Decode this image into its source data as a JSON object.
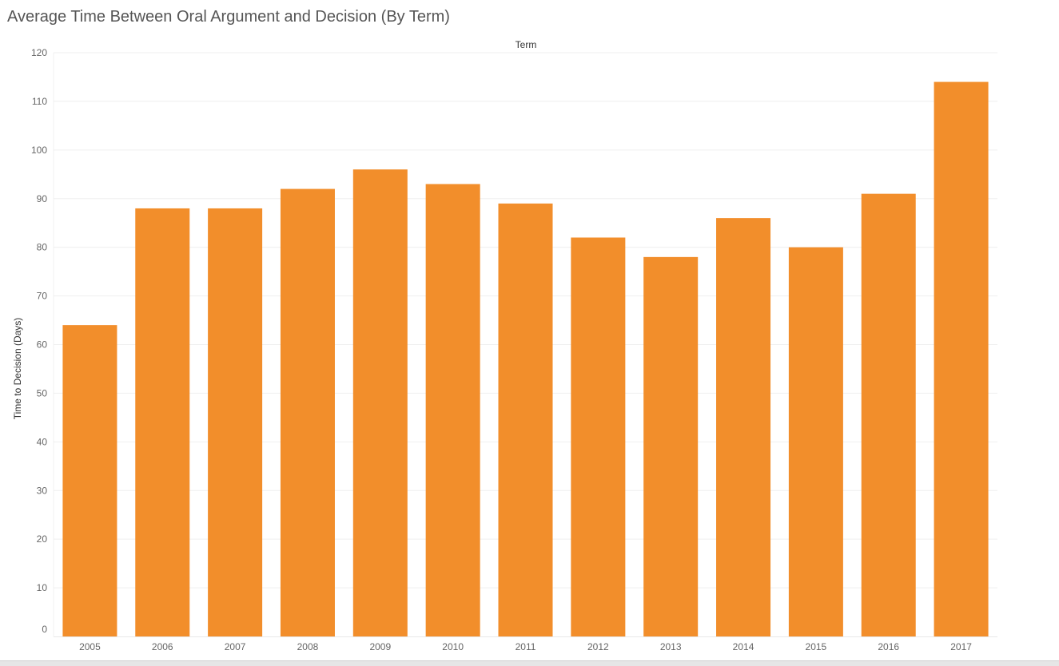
{
  "chart_data": {
    "type": "bar",
    "title": "Average Time Between Oral Argument and Decision (By Term)",
    "column_header": "Term",
    "ylabel": "Time to Decision (Days)",
    "xlabel": "",
    "categories": [
      "2005",
      "2006",
      "2007",
      "2008",
      "2009",
      "2010",
      "2011",
      "2012",
      "2013",
      "2014",
      "2015",
      "2016",
      "2017"
    ],
    "values": [
      64,
      88,
      88,
      92,
      96,
      93,
      89,
      82,
      78,
      86,
      80,
      91,
      114
    ],
    "ylim": [
      0,
      120
    ],
    "yticks": [
      0,
      10,
      20,
      30,
      40,
      50,
      60,
      70,
      80,
      90,
      100,
      110,
      120
    ],
    "grid": true,
    "bar_color": "#f28e2b"
  }
}
